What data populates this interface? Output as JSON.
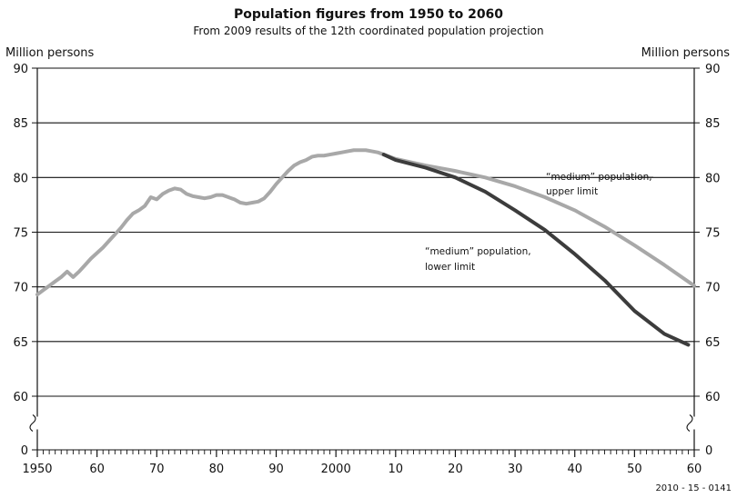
{
  "chart_data": {
    "type": "line",
    "title": "Population figures from 1950 to 2060",
    "subtitle": "From 2009 results of the 12th coordinated population projection",
    "ylabel_left": "Million persons",
    "ylabel_right": "Million persons",
    "xlim": [
      1950,
      2060
    ],
    "ylim": [
      0,
      90
    ],
    "y_axis_break": [
      0,
      60
    ],
    "y_ticks": [
      "0",
      "60",
      "65",
      "70",
      "75",
      "80",
      "85",
      "90"
    ],
    "x_ticks": [
      "1950",
      "60",
      "70",
      "80",
      "90",
      "2000",
      "10",
      "20",
      "30",
      "40",
      "50",
      "60"
    ],
    "grid": "horizontal",
    "colors": {
      "historical": "#a8a8a8",
      "upper_limit": "#a8a8a8",
      "lower_limit": "#3c3c3c",
      "grid": "#111111"
    },
    "annotations": [
      {
        "text": "“medium” population,",
        "text2": "upper limit"
      },
      {
        "text": "“medium” population,",
        "text2": "lower limit"
      }
    ],
    "footnote": "2010 - 15 - 0141",
    "series": [
      {
        "key": "historical",
        "values": [
          [
            1950,
            69.3
          ],
          [
            1951,
            69.7
          ],
          [
            1952,
            70.1
          ],
          [
            1953,
            70.5
          ],
          [
            1954,
            70.9
          ],
          [
            1955,
            71.4
          ],
          [
            1956,
            70.9
          ],
          [
            1957,
            71.4
          ],
          [
            1958,
            72.0
          ],
          [
            1959,
            72.6
          ],
          [
            1960,
            73.1
          ],
          [
            1961,
            73.6
          ],
          [
            1962,
            74.2
          ],
          [
            1963,
            74.8
          ],
          [
            1964,
            75.4
          ],
          [
            1965,
            76.1
          ],
          [
            1966,
            76.7
          ],
          [
            1967,
            77.0
          ],
          [
            1968,
            77.4
          ],
          [
            1969,
            78.2
          ],
          [
            1970,
            78.0
          ],
          [
            1971,
            78.5
          ],
          [
            1972,
            78.8
          ],
          [
            1973,
            79.0
          ],
          [
            1974,
            78.9
          ],
          [
            1975,
            78.5
          ],
          [
            1976,
            78.3
          ],
          [
            1977,
            78.2
          ],
          [
            1978,
            78.1
          ],
          [
            1979,
            78.2
          ],
          [
            1980,
            78.4
          ],
          [
            1981,
            78.4
          ],
          [
            1982,
            78.2
          ],
          [
            1983,
            78.0
          ],
          [
            1984,
            77.7
          ],
          [
            1985,
            77.6
          ],
          [
            1986,
            77.7
          ],
          [
            1987,
            77.8
          ],
          [
            1988,
            78.1
          ],
          [
            1989,
            78.7
          ],
          [
            1990,
            79.4
          ],
          [
            1991,
            80.0
          ],
          [
            1992,
            80.6
          ],
          [
            1993,
            81.1
          ],
          [
            1994,
            81.4
          ],
          [
            1995,
            81.6
          ],
          [
            1996,
            81.9
          ],
          [
            1997,
            82.0
          ],
          [
            1998,
            82.0
          ],
          [
            1999,
            82.1
          ],
          [
            2000,
            82.2
          ],
          [
            2001,
            82.3
          ],
          [
            2002,
            82.4
          ],
          [
            2003,
            82.5
          ],
          [
            2004,
            82.5
          ],
          [
            2005,
            82.5
          ],
          [
            2006,
            82.4
          ],
          [
            2007,
            82.3
          ],
          [
            2008,
            82.1
          ]
        ]
      },
      {
        "key": "upper_limit",
        "values": [
          [
            2008,
            82.1
          ],
          [
            2010,
            81.7
          ],
          [
            2015,
            81.1
          ],
          [
            2020,
            80.6
          ],
          [
            2025,
            80.0
          ],
          [
            2030,
            79.2
          ],
          [
            2035,
            78.2
          ],
          [
            2040,
            77.0
          ],
          [
            2045,
            75.5
          ],
          [
            2050,
            73.8
          ],
          [
            2055,
            72.0
          ],
          [
            2060,
            70.1
          ]
        ]
      },
      {
        "key": "lower_limit",
        "values": [
          [
            2008,
            82.1
          ],
          [
            2010,
            81.6
          ],
          [
            2015,
            80.9
          ],
          [
            2020,
            80.0
          ],
          [
            2025,
            78.7
          ],
          [
            2030,
            77.0
          ],
          [
            2035,
            75.2
          ],
          [
            2040,
            73.0
          ],
          [
            2045,
            70.6
          ],
          [
            2050,
            67.8
          ],
          [
            2055,
            65.7
          ],
          [
            2059,
            64.7
          ]
        ]
      }
    ]
  }
}
